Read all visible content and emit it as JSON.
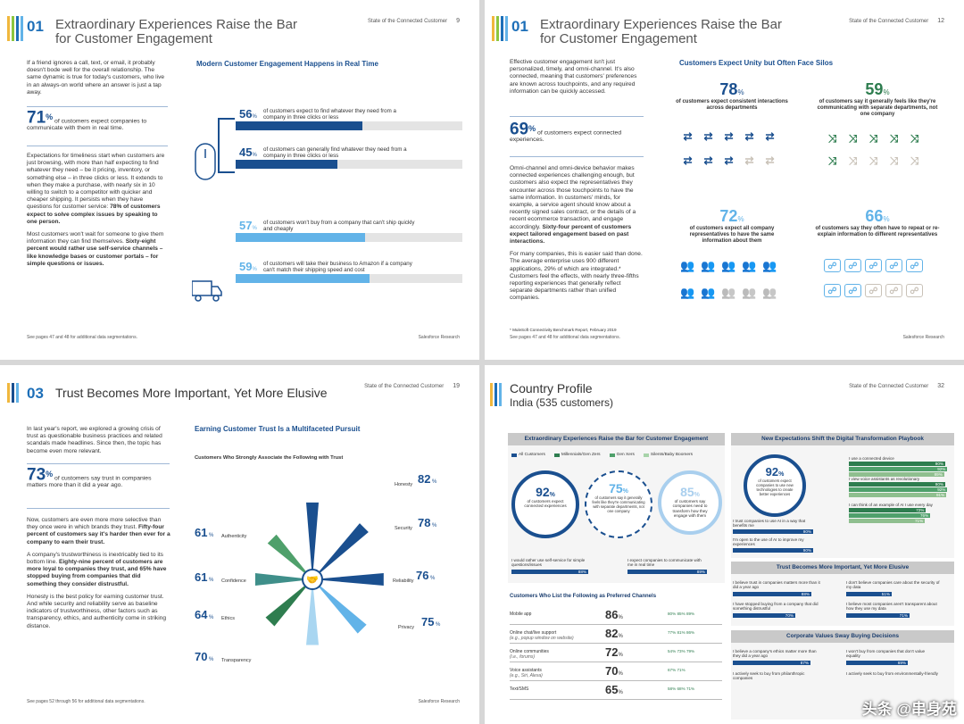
{
  "colors": {
    "navy": "#1a4f8f",
    "blue": "#2f6db5",
    "light": "#62b3e8",
    "green": "#2e7d4f",
    "teal": "#3f8f8a"
  },
  "p1": {
    "num": "01",
    "title1": "Extraordinary Experiences Raise the Bar",
    "title2": "for Customer Engagement",
    "runhead": "State of the Connected Customer",
    "page": "9",
    "intro": "If a friend ignores a call, text, or email, it probably doesn't bode well for the overall relationship. The same dynamic is true for today's customers, who live in an always-on world where an answer is just a tap away.",
    "big": "71",
    "big_suffix": "%",
    "big_text": "of customers expect companies to communicate with them in real time.",
    "para2": "Expectations for timeliness start when customers are just browsing, with more than half expecting to find whatever they need – be it pricing, inventory, or something else – in three clicks or less. It extends to when they make a purchase, with nearly six in 10 willing to switch to a competitor with quicker and cheaper shipping. It persists when they have questions for customer service:",
    "para2_bold": "78% of customers expect to solve complex issues by speaking to one person.",
    "para3": "Most customers won't wait for someone to give them information they can find themselves.",
    "para3_bold": "Sixty-eight percent would rather use self-service channels – like knowledge bases or customer portals – for simple questions or issues.",
    "chart_title": "Modern Customer Engagement Happens in Real Time",
    "bars": [
      {
        "pct": "56",
        "text": "of customers expect to find whatever they need from a company in three clicks or less"
      },
      {
        "pct": "45",
        "text": "of customers can generally find whatever they need from a company in three clicks or less"
      },
      {
        "pct": "57",
        "text": "of customers won't buy from a company that can't ship quickly and cheaply"
      },
      {
        "pct": "59",
        "text": "of customers will take their business to Amazon if a company can't match their shipping speed and cost"
      }
    ],
    "foot_left": "See pages 47 and 48 for additional data segmentations.",
    "foot_right": "Salesforce Research"
  },
  "p2": {
    "num": "01",
    "title1": "Extraordinary Experiences Raise the Bar",
    "title2": "for Customer Engagement",
    "runhead": "State of the Connected Customer",
    "page": "12",
    "intro": "Effective customer engagement isn't just personalized, timely, and omni-channel. It's also connected, meaning that customers' preferences are known across touchpoints, and any required information can be quickly accessed.",
    "big": "69",
    "big_suffix": "%",
    "big_text": "of customers expect connected experiences.",
    "para2": "Omni-channel and omni-device behavior makes connected experiences challenging enough, but customers also expect the representatives they encounter across those touchpoints to have the same information. In customers' minds, for example, a service agent should know about a recently signed sales contract, or the details of a recent ecommerce transaction, and engage accordingly.",
    "para2_bold": "Sixty-four percent of customers expect tailored engagement based on past interactions.",
    "para3": "For many companies, this is easier said than done. The average enterprise uses 900 different applications, 29% of which are integrated.* Customers feel the effects, with nearly three-fifths reporting experiences that generally reflect separate departments rather than unified companies.",
    "chart_title": "Customers Expect Unity but Often Face Silos",
    "stats": [
      {
        "n": "78",
        "t": "of customers expect consistent interactions across departments"
      },
      {
        "n": "59",
        "t": "of customers say it generally feels like they're communicating with separate departments, not one company"
      },
      {
        "n": "72",
        "t": "of customers expect all company representatives to have the same information about them"
      },
      {
        "n": "66",
        "t": "of customers say they often have to repeat or re-explain information to different representatives"
      }
    ],
    "footnote": "* MuleSoft Connectivity Benchmark Report, February 2019",
    "foot_left": "See pages 47 and 48 for additional data segmentations.",
    "foot_right": "Salesforce Research"
  },
  "p3": {
    "num": "03",
    "title": "Trust Becomes More Important, Yet More Elusive",
    "runhead": "State of the Connected Customer",
    "page": "19",
    "intro": "In last year's report, we explored a growing crisis of trust as questionable business practices and related scandals made headlines. Since then, the topic has become even more relevant.",
    "big": "73",
    "big_suffix": "%",
    "big_text": "of customers say trust in companies matters more than it did a year ago.",
    "para2": "Now, customers are even more more selective than they once were in which brands they trust.",
    "para2_bold": "Fifty-four percent of customers say it's harder then ever for a company to earn their trust.",
    "para3": "A company's trustworthiness is inextricably tied to its bottom line.",
    "para3_bold": "Eighty-nine percent of customers are more loyal to companies they trust, and 65% have stopped buying from companies that did something they consider distrustful.",
    "para4": "Honesty is the best policy for earning customer trust. And while security and reliability serve as baseline indicators of trustworthiness, other factors such as transparency, ethics, and authenticity come in striking distance.",
    "chart_title": "Earning Customer Trust Is a Multifaceted Pursuit",
    "chart_sub": "Customers Who Strongly Associate the Following with Trust",
    "foot_left": "See pages 52 through 56 for additional data segmentations.",
    "foot_right": "Salesforce Research"
  },
  "p4": {
    "title1": "Country Profile",
    "title2": "India (535 customers)",
    "runhead": "State of the Connected Customer",
    "page": "32",
    "box1_title": "Extraordinary Experiences Raise the Bar for Customer Engagement",
    "legend": [
      "All Customers",
      "Millennials/Gen Zers",
      "Gen Xers",
      "Silents/Baby Boomers"
    ],
    "circles": [
      {
        "n": "92",
        "t": "of customers expect connected experiences"
      },
      {
        "n": "75",
        "t": "of customers say it generally feels like they're communicating with separate departments, not one company"
      },
      {
        "n": "85",
        "t": "of customers say companies need to transform how they engage with them"
      }
    ],
    "self": {
      "t": "I would rather use self-service for simple questions/issues",
      "v": "88%"
    },
    "realtime": {
      "t": "I expect companies to communicate with me in real time",
      "v": "89%"
    },
    "channels_title": "Customers Who List the Following as Preferred Channels",
    "channels": [
      {
        "name": "Mobile app",
        "sub": "",
        "v": "86",
        "dots": "80% 85% 89%"
      },
      {
        "name": "Online chat/live support",
        "sub": "(e.g., popup window on website)",
        "v": "82",
        "dots": "77% 81% 86%"
      },
      {
        "name": "Online communities",
        "sub": "(i.e., forums)",
        "v": "72",
        "dots": "54% 73% 79%"
      },
      {
        "name": "Voice assistants",
        "sub": "(e.g., Siri, Alexa)",
        "v": "70",
        "dots": "67% 71%"
      },
      {
        "name": "Text/SMS",
        "sub": "",
        "v": "65",
        "dots": "58% 68% 71%"
      }
    ],
    "box2_title": "New Expectations Shift the Digital Transformation Playbook",
    "b2_big": "92",
    "b2_big_t": "of customers expect companies to use new technologies to create better experiences",
    "b2_items": [
      {
        "t": "I use a connected device",
        "v": [
          "90%",
          "92%",
          "89%"
        ]
      },
      {
        "t": "I view voice assistants as revolutionary",
        "v": [
          "90%",
          "92%",
          "91%"
        ]
      },
      {
        "t": "I can think of an example of AI I use every day",
        "v": [
          "72%",
          "76%",
          "71%"
        ]
      }
    ],
    "b2_left": [
      {
        "t": "I trust companies to use AI in a way that benefits me",
        "v": "90%"
      },
      {
        "t": "I'm open to the use of AI to improve my experiences",
        "v": "90%"
      }
    ],
    "box3_title": "Trust Becomes More Important, Yet More Elusive",
    "b3": [
      {
        "t": "I believe trust in companies matters more than it did a year ago",
        "v": "88%"
      },
      {
        "t": "I don't believe companies care about the security of my data",
        "v": "51%"
      },
      {
        "t": "I have stopped buying from a company that did something distrustful",
        "v": "70%"
      },
      {
        "t": "I believe most companies aren't transparent about how they use my data",
        "v": "71%"
      }
    ],
    "box4_title": "Corporate Values Sway Buying Decisions",
    "b4": [
      {
        "t": "I believe a company's ethics matter more than they did a year ago",
        "v": "87%"
      },
      {
        "t": "I won't buy from companies that don't value equality",
        "v": "69%"
      },
      {
        "t": "I actively seek to buy from philanthropic companies",
        "v": ""
      },
      {
        "t": "I actively seek to buy from environmentally-friendly",
        "v": ""
      }
    ],
    "watermark": "头条 @串身苑"
  },
  "chart_data": [
    {
      "type": "bar",
      "title": "Modern Customer Engagement Happens in Real Time",
      "categories": [
        "find in three clicks or less (expect)",
        "find in three clicks or less (generally can)",
        "won't buy without quick cheap shipping",
        "take business to Amazon"
      ],
      "values": [
        56,
        45,
        57,
        59
      ],
      "ylim": [
        0,
        100
      ]
    },
    {
      "type": "bar",
      "title": "Earning Customer Trust Is a Multifaceted Pursuit",
      "subtitle": "Customers Who Strongly Associate the Following with Trust",
      "categories": [
        "Honesty",
        "Security",
        "Reliability",
        "Privacy",
        "Transparency",
        "Ethics",
        "Confidence",
        "Authenticity"
      ],
      "values": [
        82,
        78,
        76,
        75,
        70,
        64,
        61,
        61
      ]
    },
    {
      "type": "bar",
      "title": "Customers Who List the Following as Preferred Channels",
      "categories": [
        "Mobile app",
        "Online chat/live support",
        "Online communities",
        "Voice assistants",
        "Text/SMS"
      ],
      "values": [
        86,
        82,
        72,
        70,
        65
      ]
    }
  ]
}
